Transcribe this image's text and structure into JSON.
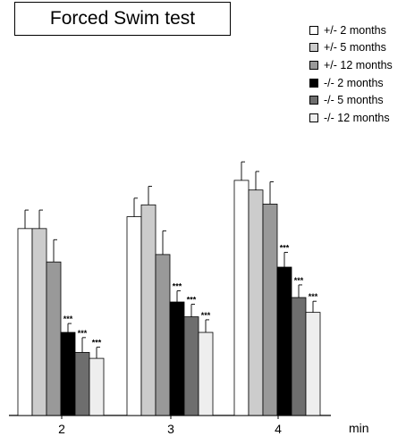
{
  "chart_data": {
    "type": "bar",
    "title": "Forced Swim test",
    "xlabel": "min",
    "ylabel": "",
    "categories": [
      "2",
      "3",
      "4"
    ],
    "ylim": [
      0,
      320
    ],
    "grid": false,
    "legend_position": "top-right",
    "series": [
      {
        "name": "+/- 2 months",
        "color": "#ffffff",
        "values": [
          252,
          268,
          317
        ],
        "errors": [
          25,
          25,
          25
        ],
        "sig": [
          "",
          "",
          ""
        ]
      },
      {
        "name": "+/- 5 months",
        "color": "#cccccc",
        "values": [
          252,
          284,
          304
        ],
        "errors": [
          25,
          25,
          25
        ],
        "sig": [
          "",
          "",
          ""
        ]
      },
      {
        "name": "+/- 12 months",
        "color": "#999999",
        "values": [
          207,
          217,
          285
        ],
        "errors": [
          30,
          32,
          30
        ],
        "sig": [
          "",
          "",
          ""
        ]
      },
      {
        "name": "-/- 2 months",
        "color": "#000000",
        "values": [
          112,
          153,
          200
        ],
        "errors": [
          12,
          15,
          20
        ],
        "sig": [
          "***",
          "***",
          "***"
        ]
      },
      {
        "name": "-/- 5 months",
        "color": "#6e6e6e",
        "values": [
          85,
          133,
          159
        ],
        "errors": [
          20,
          17,
          17
        ],
        "sig": [
          "***",
          "***",
          "***"
        ]
      },
      {
        "name": "-/- 12 months",
        "color": "#eeeeee",
        "values": [
          77,
          112,
          139
        ],
        "errors": [
          15,
          17,
          15
        ],
        "sig": [
          "***",
          "***",
          "***"
        ]
      }
    ]
  }
}
